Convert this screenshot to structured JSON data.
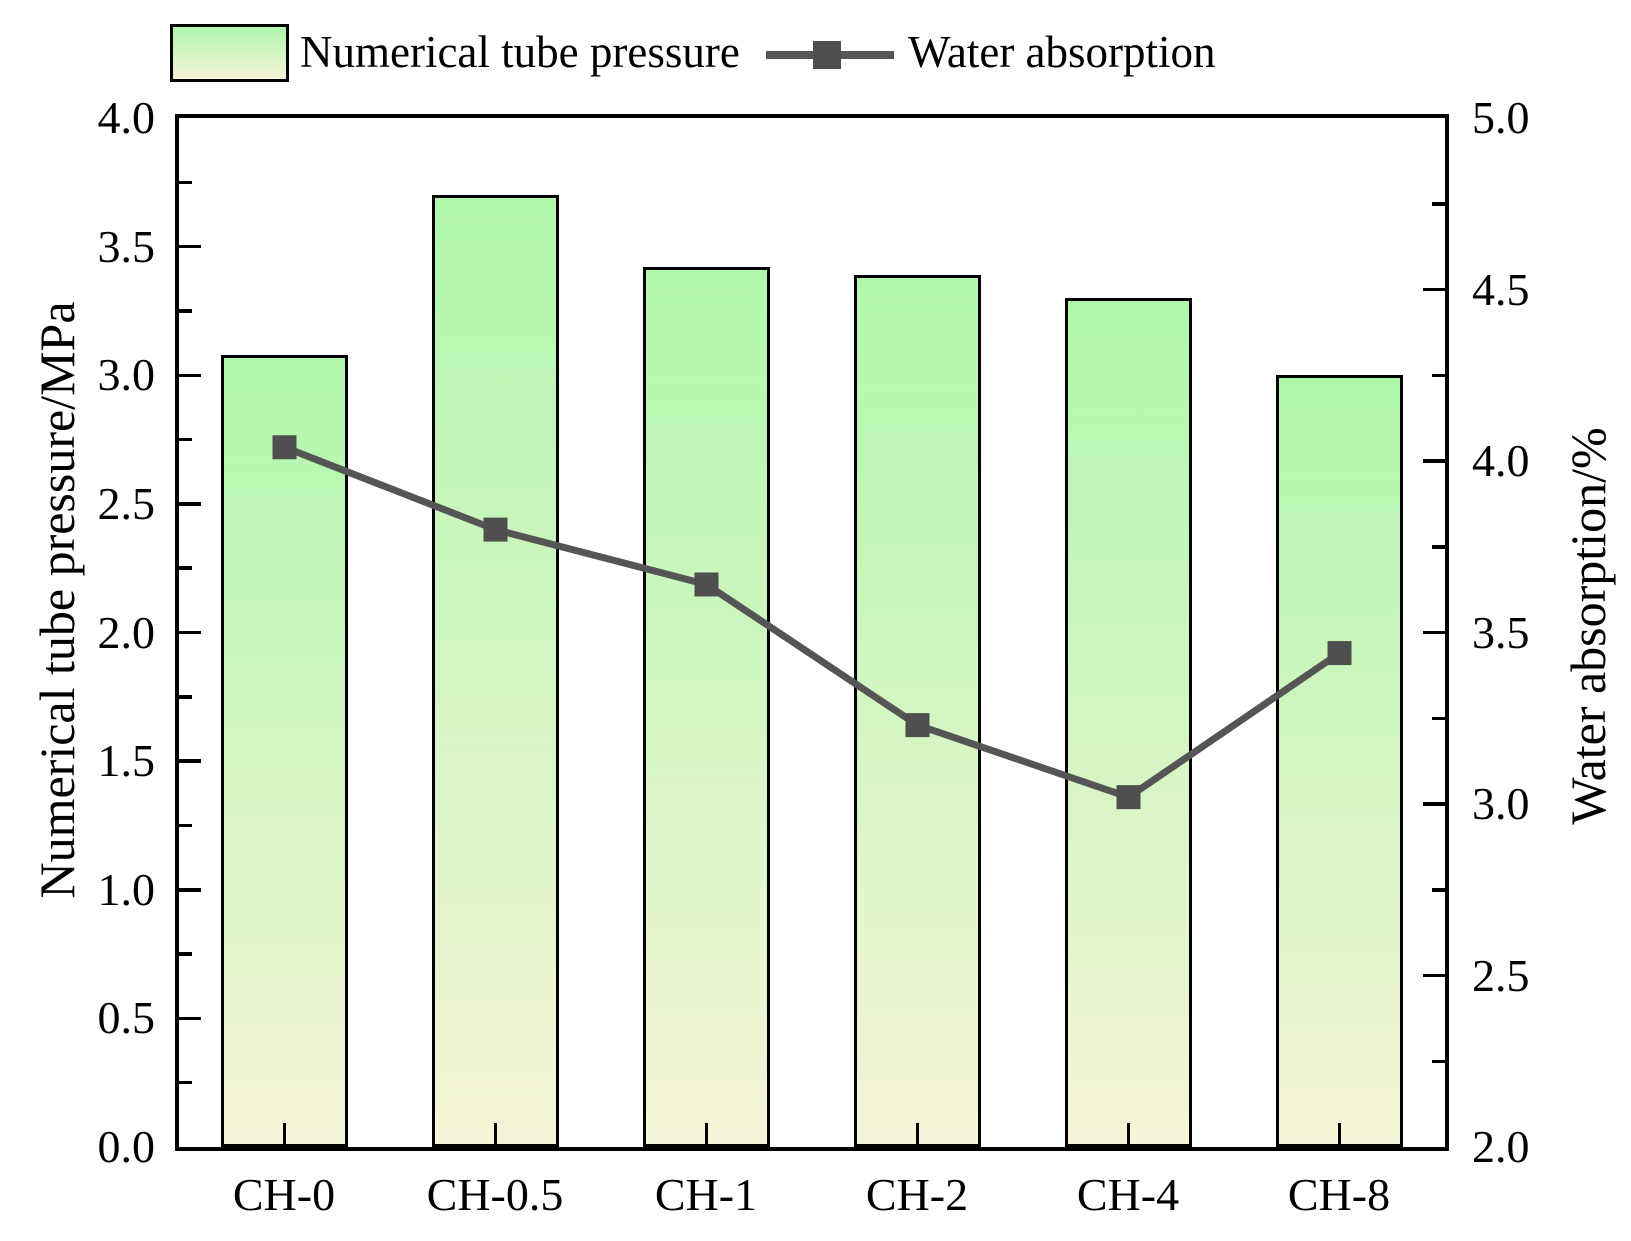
{
  "legend": {
    "items": [
      {
        "symbol": "gradient-bar-swatch",
        "label": "Numerical tube pressure"
      },
      {
        "symbol": "line-with-square-marker",
        "label": "Water absorption"
      }
    ]
  },
  "colors": {
    "bar_gradient_top": "#b0f7ac",
    "bar_gradient_bottom": "#f6f4d8",
    "bar_border": "#000000",
    "line": "#555555",
    "marker": "#4f4f4f",
    "axis": "#000000",
    "text": "#000000",
    "background": "#ffffff"
  },
  "chart_data": {
    "type": "bar",
    "categories": [
      "CH-0",
      "CH-0.5",
      "CH-1",
      "CH-2",
      "CH-4",
      "CH-8"
    ],
    "series": [
      {
        "name": "Numerical tube pressure",
        "type": "bar",
        "axis": "left",
        "values": [
          3.08,
          3.7,
          3.42,
          3.39,
          3.3,
          3.0
        ]
      },
      {
        "name": "Water absorption",
        "type": "line",
        "axis": "right",
        "values": [
          4.04,
          3.8,
          3.64,
          3.23,
          3.02,
          3.44
        ]
      }
    ],
    "left_axis": {
      "label": "Numerical tube pressure/MPa",
      "min": 0.0,
      "max": 4.0,
      "major_step": 0.5,
      "minor_step": 0.25,
      "tick_labels": [
        "0.0",
        "0.5",
        "1.0",
        "1.5",
        "2.0",
        "2.5",
        "3.0",
        "3.5",
        "4.0"
      ]
    },
    "right_axis": {
      "label": "Water absorption/%",
      "min": 2.0,
      "max": 5.0,
      "major_step": 0.5,
      "minor_step": 0.25,
      "tick_labels": [
        "2.0",
        "2.5",
        "3.0",
        "3.5",
        "4.0",
        "4.5",
        "5.0"
      ]
    },
    "x_axis": {
      "label": ""
    },
    "grid": false,
    "legend_position": "top"
  }
}
